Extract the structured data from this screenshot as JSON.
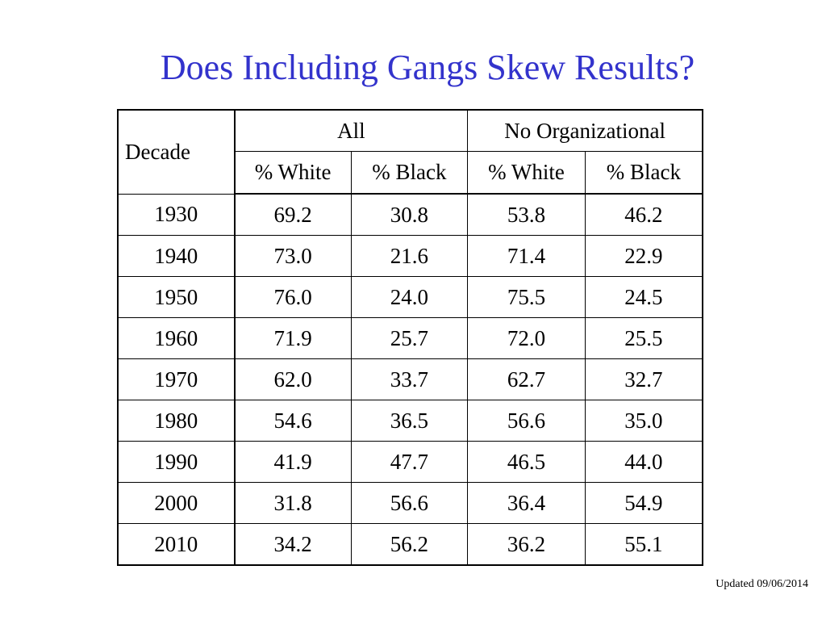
{
  "slide": {
    "title": "Does Including Gangs Skew Results?",
    "footer": "Updated 09/06/2014"
  },
  "table": {
    "corner_header": "Decade",
    "group_headers": [
      "All",
      "No Organizational"
    ],
    "sub_headers": [
      "% White",
      "% Black",
      "% White",
      "% Black"
    ],
    "rows": [
      {
        "decade": "1930",
        "values": [
          "69.2",
          "30.8",
          "53.8",
          "46.2"
        ]
      },
      {
        "decade": "1940",
        "values": [
          "73.0",
          "21.6",
          "71.4",
          "22.9"
        ]
      },
      {
        "decade": "1950",
        "values": [
          "76.0",
          "24.0",
          "75.5",
          "24.5"
        ]
      },
      {
        "decade": "1960",
        "values": [
          "71.9",
          "25.7",
          "72.0",
          "25.5"
        ]
      },
      {
        "decade": "1970",
        "values": [
          "62.0",
          "33.7",
          "62.7",
          "32.7"
        ]
      },
      {
        "decade": "1980",
        "values": [
          "54.6",
          "36.5",
          "56.6",
          "35.0"
        ]
      },
      {
        "decade": "1990",
        "values": [
          "41.9",
          "47.7",
          "46.5",
          "44.0"
        ]
      },
      {
        "decade": "2000",
        "values": [
          "31.8",
          "56.6",
          "36.4",
          "54.9"
        ]
      },
      {
        "decade": "2010",
        "values": [
          "34.2",
          "56.2",
          "36.2",
          "55.1"
        ]
      }
    ]
  },
  "colors": {
    "title": "#3333cc",
    "text": "#000000",
    "background": "#ffffff"
  }
}
